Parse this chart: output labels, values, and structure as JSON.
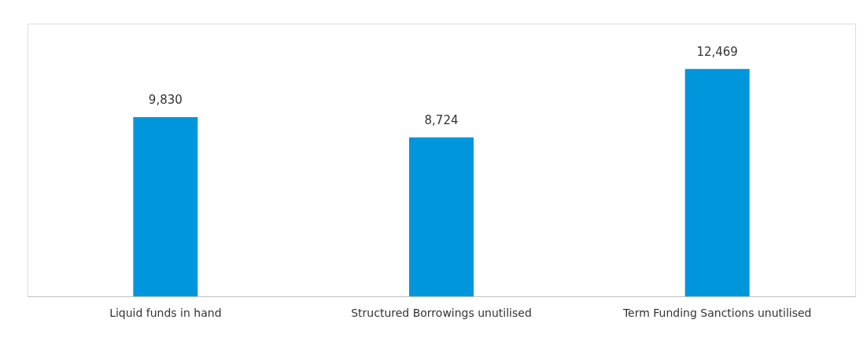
{
  "chart_data": {
    "type": "bar",
    "categories": [
      "Liquid funds in hand",
      "Structured Borrowings unutilised",
      "Term Funding Sanctions unutilised"
    ],
    "values": [
      9830,
      8724,
      12469
    ],
    "color": "#0096db",
    "value_labels": [
      "9,830",
      "8,724",
      "12,469"
    ],
    "grid": false,
    "tick_labels": "x"
  }
}
